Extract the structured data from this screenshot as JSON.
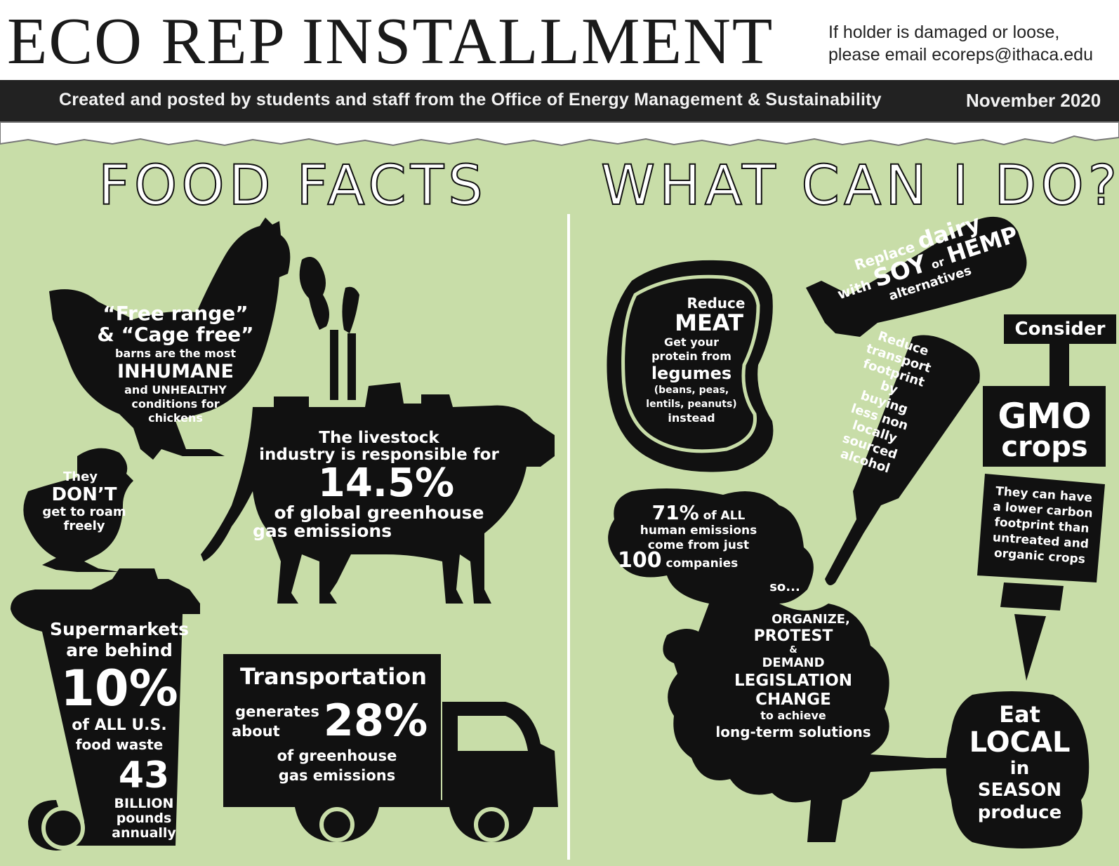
{
  "header": {
    "title": "ECO REP INSTALLMENT",
    "contact_line1": "If holder is damaged or loose,",
    "contact_line2": "please email ecoreps@ithaca.edu",
    "credit": "Created and posted by students and staff from the Office of Energy Management & Sustainability",
    "date": "November 2020"
  },
  "colors": {
    "background": "#c8dda8",
    "banner": "#222222",
    "silhouette": "#111111",
    "text_on_dark": "#ffffff"
  },
  "food_facts": {
    "heading": "FOOD FACTS",
    "chicken": {
      "line1": "“Free range”",
      "line2": "& “Cage free”",
      "line3": "barns are the most",
      "line4": "INHUMANE",
      "line5": "and UNHEALTHY",
      "line6": "conditions for",
      "line7": "chickens"
    },
    "chick": {
      "line1": "They",
      "line2": "DON’T",
      "line3": "get to roam",
      "line4": "freely"
    },
    "cow": {
      "line1": "The livestock",
      "line2": "industry is responsible for",
      "stat": "14.5%",
      "line3": "of global greenhouse",
      "line4": "gas emissions"
    },
    "trash": {
      "line1": "Supermarkets",
      "line2": "are behind",
      "stat": "10%",
      "line3": "of ALL U.S.",
      "line4": "food waste",
      "stat2": "43",
      "line5": "BILLION",
      "line6": "pounds",
      "line7": "annually"
    },
    "truck": {
      "title": "Transportation",
      "line1": "generates",
      "line2": "about",
      "stat": "28%",
      "line3": "of greenhouse",
      "line4": "gas emissions"
    }
  },
  "what_can_i_do": {
    "heading": "WHAT CAN I DO?",
    "steak": {
      "line1": "Reduce",
      "line2": "MEAT",
      "line3": "Get your",
      "line4": "protein from",
      "line5": "legumes",
      "line6": "(beans, peas,",
      "line7": "lentils, peanuts)",
      "line8": "instead"
    },
    "milk": {
      "w1": "Replace",
      "w2": "dairy",
      "w3": "with",
      "w4": "SOY",
      "w5": "or",
      "w6": "HEMP",
      "w7": "alternatives"
    },
    "bottle": {
      "line1": "Reduce",
      "line2": "transport",
      "line3": "footprint",
      "line4": "by",
      "line5": "buying",
      "line6": "less non",
      "line7": "locally",
      "line8": "sourced",
      "line9": "alcohol"
    },
    "syringe": {
      "label": "Consider",
      "line1": "GMO",
      "line2": "crops",
      "line3": "They can have",
      "line4": "a lower carbon",
      "line5": "footprint than",
      "line6": "untreated and",
      "line7": "organic crops"
    },
    "tree": {
      "stat": "71%",
      "stat_suffix": "of ALL",
      "line1": "human emissions",
      "line2": "come from just",
      "stat2": "100",
      "stat2_suffix": "companies",
      "line3": "so...",
      "line4": "ORGANIZE,",
      "line5": "PROTEST",
      "line6": "&",
      "line7": "DEMAND",
      "line8": "LEGISLATION",
      "line9": "CHANGE",
      "line10": "to achieve",
      "line11": "long-term solutions"
    },
    "produce": {
      "line1": "Eat",
      "line2": "LOCAL",
      "line3": "in",
      "line4": "SEASON",
      "line5": "produce"
    }
  }
}
